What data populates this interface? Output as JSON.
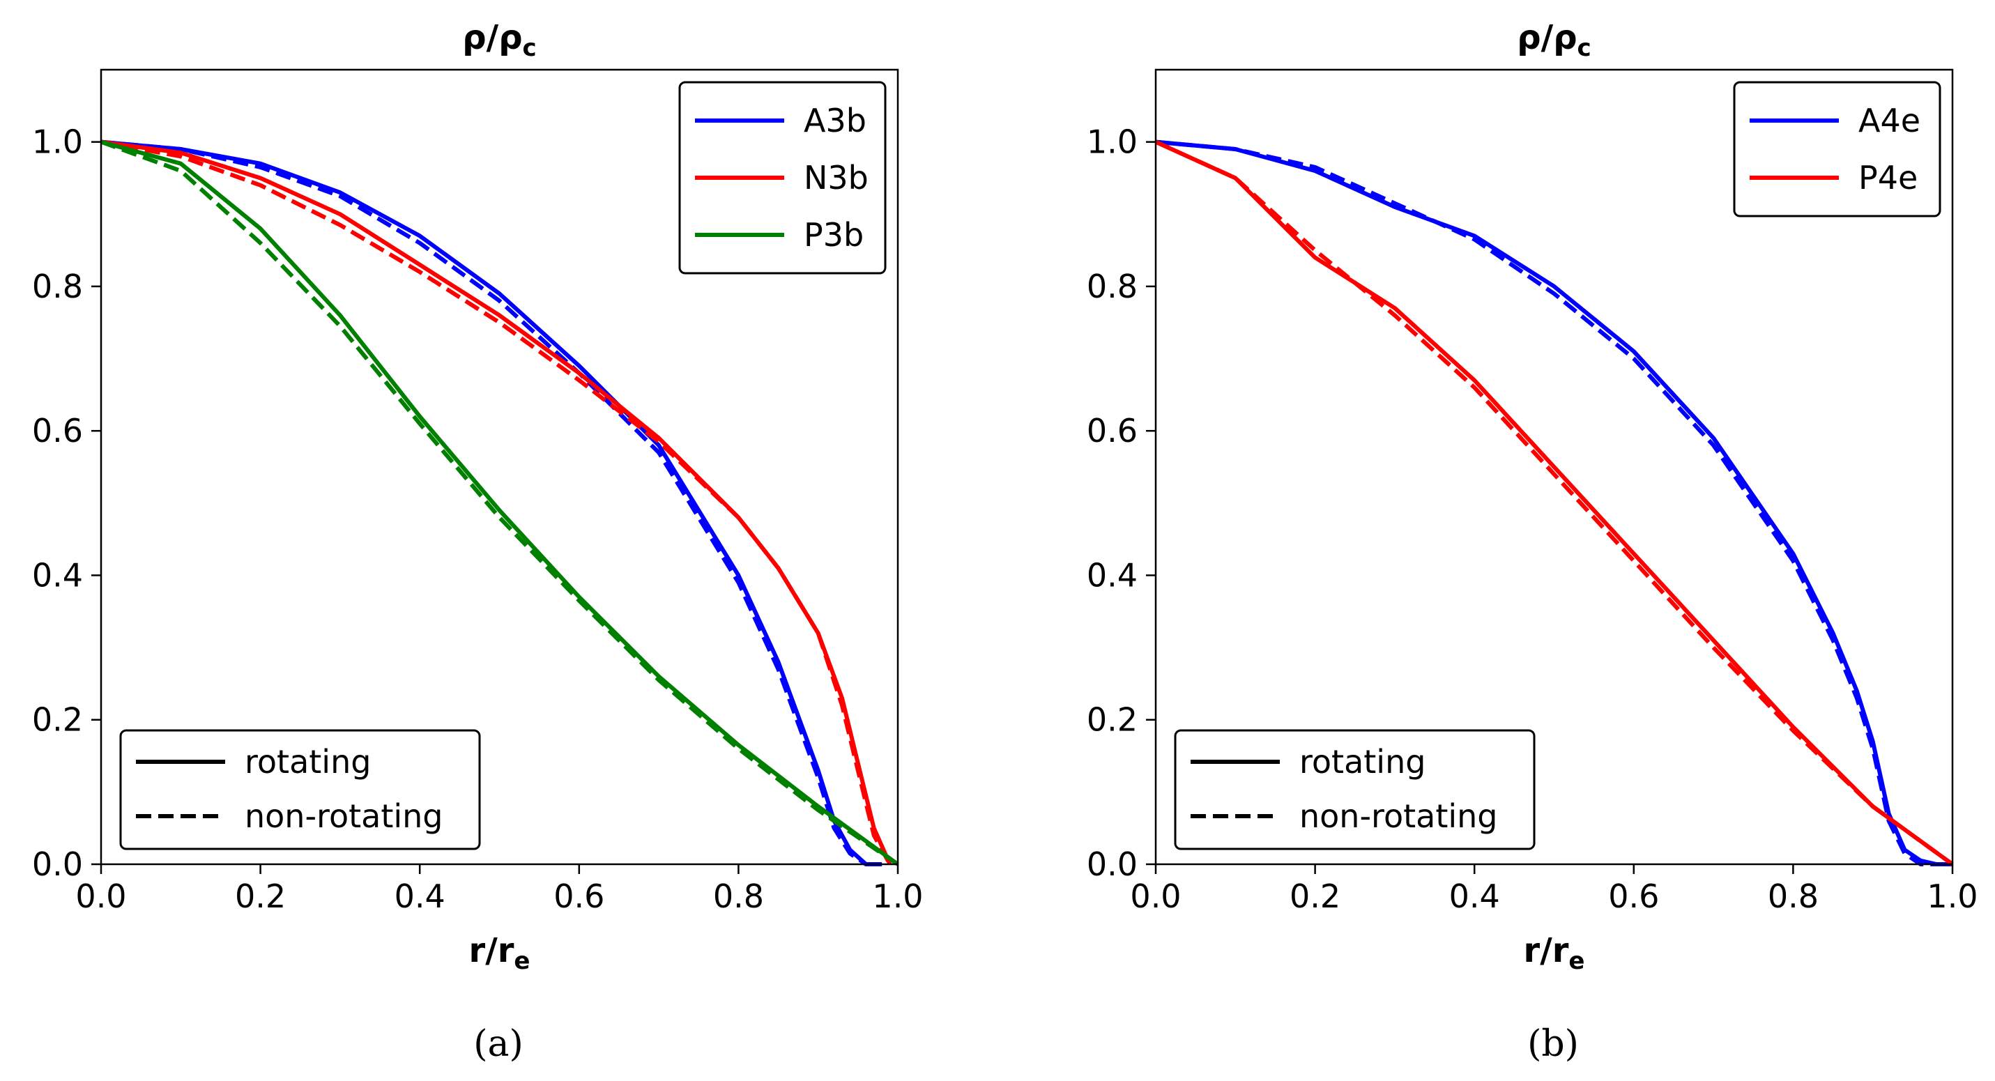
{
  "chart_data": [
    {
      "type": "line",
      "caption": "(a)",
      "title": "ρ/ρ",
      "title_sub": "c",
      "xlabel": "r/r",
      "xlabel_sub": "e",
      "xlim": [
        0,
        1
      ],
      "ylim": [
        0,
        1.1
      ],
      "xticks": [
        "0.0",
        "0.2",
        "0.4",
        "0.6",
        "0.8",
        "1.0"
      ],
      "yticks": [
        "0.0",
        "0.2",
        "0.4",
        "0.6",
        "0.8",
        "1.0"
      ],
      "legend_models": {
        "position": "top-right",
        "entries": [
          "A3b",
          "N3b",
          "P3b"
        ]
      },
      "legend_styles": {
        "position": "bottom-left",
        "entries": [
          "rotating",
          "non-rotating"
        ]
      },
      "series": [
        {
          "name": "A3b",
          "color": "#0000ff",
          "style": "solid",
          "x": [
            0,
            0.1,
            0.2,
            0.3,
            0.4,
            0.5,
            0.6,
            0.7,
            0.8,
            0.85,
            0.9,
            0.92,
            0.94,
            0.96,
            0.98
          ],
          "y": [
            1.0,
            0.99,
            0.97,
            0.93,
            0.87,
            0.79,
            0.69,
            0.58,
            0.4,
            0.28,
            0.13,
            0.06,
            0.02,
            0.0,
            0.0
          ]
        },
        {
          "name": "A3b",
          "color": "#0000ff",
          "style": "dashed",
          "x": [
            0,
            0.1,
            0.2,
            0.3,
            0.4,
            0.5,
            0.6,
            0.7,
            0.8,
            0.85,
            0.9,
            0.92,
            0.94,
            0.96,
            0.98
          ],
          "y": [
            1.0,
            0.99,
            0.965,
            0.925,
            0.86,
            0.78,
            0.68,
            0.57,
            0.39,
            0.27,
            0.12,
            0.05,
            0.015,
            0.0,
            0.0
          ]
        },
        {
          "name": "N3b",
          "color": "#ff0000",
          "style": "solid",
          "x": [
            0,
            0.1,
            0.2,
            0.3,
            0.4,
            0.5,
            0.6,
            0.7,
            0.8,
            0.85,
            0.9,
            0.93,
            0.95,
            0.97,
            0.99
          ],
          "y": [
            1.0,
            0.985,
            0.95,
            0.9,
            0.83,
            0.76,
            0.68,
            0.59,
            0.48,
            0.41,
            0.32,
            0.23,
            0.14,
            0.05,
            0.0
          ]
        },
        {
          "name": "N3b",
          "color": "#ff0000",
          "style": "dashed",
          "x": [
            0,
            0.1,
            0.2,
            0.3,
            0.4,
            0.5,
            0.6,
            0.7,
            0.8,
            0.85,
            0.9,
            0.93,
            0.95,
            0.97,
            0.99
          ],
          "y": [
            1.0,
            0.98,
            0.94,
            0.885,
            0.82,
            0.75,
            0.67,
            0.585,
            0.48,
            0.41,
            0.32,
            0.22,
            0.13,
            0.04,
            0.0
          ]
        },
        {
          "name": "P3b",
          "color": "#008000",
          "style": "solid",
          "x": [
            0,
            0.1,
            0.2,
            0.3,
            0.4,
            0.5,
            0.6,
            0.7,
            0.8,
            0.9,
            1.0
          ],
          "y": [
            1.0,
            0.97,
            0.88,
            0.76,
            0.62,
            0.49,
            0.37,
            0.26,
            0.165,
            0.08,
            0.0
          ]
        },
        {
          "name": "P3b",
          "color": "#008000",
          "style": "dashed",
          "x": [
            0,
            0.1,
            0.2,
            0.3,
            0.4,
            0.5,
            0.6,
            0.7,
            0.8,
            0.9,
            1.0
          ],
          "y": [
            1.0,
            0.96,
            0.86,
            0.745,
            0.61,
            0.48,
            0.365,
            0.255,
            0.16,
            0.075,
            0.0
          ]
        }
      ]
    },
    {
      "type": "line",
      "caption": "(b)",
      "title": "ρ/ρ",
      "title_sub": "c",
      "xlabel": "r/r",
      "xlabel_sub": "e",
      "xlim": [
        0,
        1
      ],
      "ylim": [
        0,
        1.1
      ],
      "xticks": [
        "0.0",
        "0.2",
        "0.4",
        "0.6",
        "0.8",
        "1.0"
      ],
      "yticks": [
        "0.0",
        "0.2",
        "0.4",
        "0.6",
        "0.8",
        "1.0"
      ],
      "legend_models": {
        "position": "top-right",
        "entries": [
          "A4e",
          "P4e"
        ]
      },
      "legend_styles": {
        "position": "bottom-left",
        "entries": [
          "rotating",
          "non-rotating"
        ]
      },
      "series": [
        {
          "name": "A4e",
          "color": "#0000ff",
          "style": "solid",
          "x": [
            0,
            0.1,
            0.2,
            0.3,
            0.4,
            0.5,
            0.6,
            0.7,
            0.8,
            0.85,
            0.88,
            0.9,
            0.92,
            0.94,
            0.96,
            0.98,
            1.0
          ],
          "y": [
            1.0,
            0.99,
            0.96,
            0.91,
            0.87,
            0.8,
            0.71,
            0.59,
            0.43,
            0.32,
            0.24,
            0.17,
            0.07,
            0.02,
            0.005,
            0.0,
            0.0
          ]
        },
        {
          "name": "A4e",
          "color": "#0000ff",
          "style": "dashed",
          "x": [
            0,
            0.1,
            0.2,
            0.3,
            0.4,
            0.5,
            0.6,
            0.7,
            0.8,
            0.85,
            0.88,
            0.9,
            0.92,
            0.94,
            0.96,
            0.98,
            1.0
          ],
          "y": [
            1.0,
            0.99,
            0.965,
            0.915,
            0.865,
            0.79,
            0.7,
            0.58,
            0.42,
            0.31,
            0.23,
            0.16,
            0.06,
            0.015,
            0.0,
            0.0,
            0.0
          ]
        },
        {
          "name": "P4e",
          "color": "#ff0000",
          "style": "solid",
          "x": [
            0,
            0.1,
            0.2,
            0.3,
            0.4,
            0.5,
            0.6,
            0.7,
            0.8,
            0.9,
            1.0
          ],
          "y": [
            1.0,
            0.95,
            0.84,
            0.77,
            0.67,
            0.55,
            0.43,
            0.31,
            0.19,
            0.08,
            0.0
          ]
        },
        {
          "name": "P4e",
          "color": "#ff0000",
          "style": "dashed",
          "x": [
            0,
            0.1,
            0.2,
            0.3,
            0.4,
            0.5,
            0.6,
            0.7,
            0.8,
            0.9,
            1.0
          ],
          "y": [
            1.0,
            0.95,
            0.85,
            0.76,
            0.66,
            0.54,
            0.42,
            0.3,
            0.185,
            0.08,
            0.0
          ]
        }
      ]
    }
  ]
}
